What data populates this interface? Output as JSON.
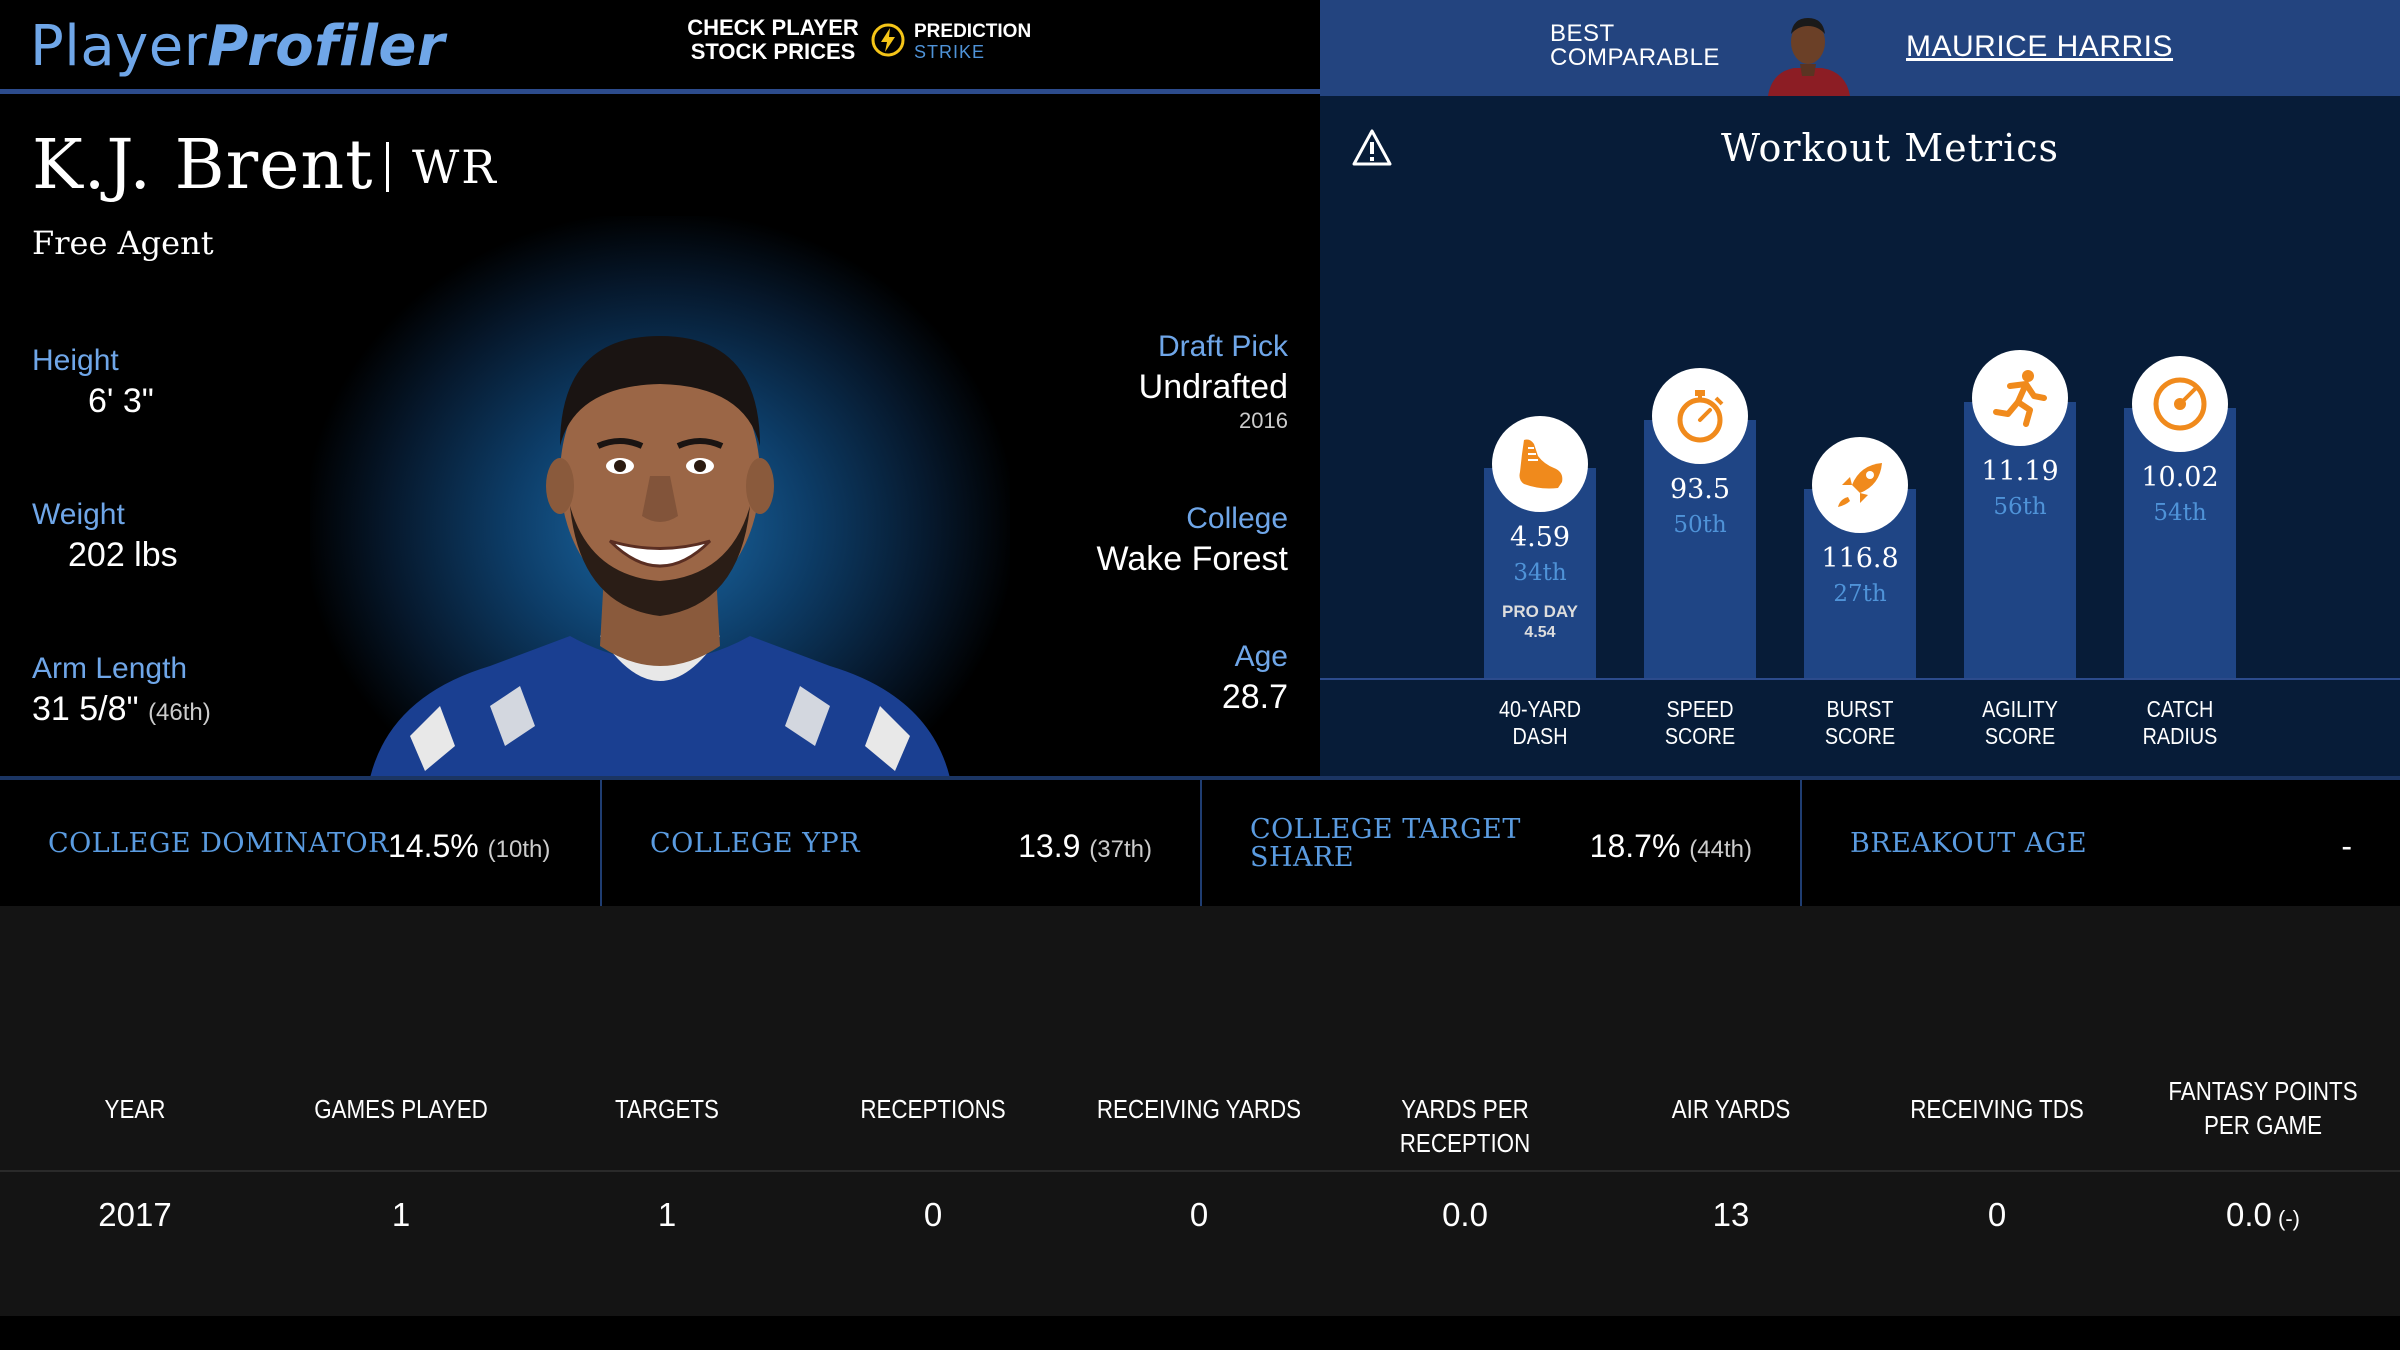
{
  "header": {
    "logo_part1": "Player",
    "logo_part2": "Profiler",
    "cta_text": "CHECK PLAYER STOCK PRICES",
    "cta_brand_line1": "PREDICTION",
    "cta_brand_line2": "STRIKE",
    "comparable_label": "BEST COMPARABLE",
    "comparable_name": "MAURICE HARRIS"
  },
  "player": {
    "name": "K.J. Brent",
    "position": "WR",
    "team": "Free Agent",
    "height_label": "Height",
    "height": "6' 3\"",
    "weight_label": "Weight",
    "weight": "202 lbs",
    "arm_label": "Arm Length",
    "arm_length": "31 5/8\"",
    "arm_rank": "(46th)",
    "draft_label": "Draft Pick",
    "draft_pick": "Undrafted",
    "draft_year": "2016",
    "college_label": "College",
    "college": "Wake Forest",
    "age_label": "Age",
    "age": "28.7"
  },
  "workout": {
    "title": "Workout Metrics",
    "colors": {
      "bar": "#1f4585",
      "icon": "#f08a1c",
      "percentile": "#4f93d8"
    },
    "metrics": [
      {
        "value": "4.59",
        "percentile": "34th",
        "extra_label": "PRO DAY",
        "extra_value": "4.54",
        "label_line1": "40-YARD",
        "label_line2": "DASH",
        "icon": "shoe-icon",
        "pct": 34
      },
      {
        "value": "93.5",
        "percentile": "50th",
        "label_line1": "SPEED",
        "label_line2": "SCORE",
        "icon": "stopwatch-icon",
        "pct": 50
      },
      {
        "value": "116.8",
        "percentile": "27th",
        "label_line1": "BURST",
        "label_line2": "SCORE",
        "icon": "rocket-icon",
        "pct": 27
      },
      {
        "value": "11.19",
        "percentile": "56th",
        "label_line1": "AGILITY",
        "label_line2": "SCORE",
        "icon": "runner-icon",
        "pct": 56
      },
      {
        "value": "10.02",
        "percentile": "54th",
        "label_line1": "CATCH",
        "label_line2": "RADIUS",
        "icon": "target-icon",
        "pct": 54
      }
    ]
  },
  "college_stats": [
    {
      "label": "COLLEGE DOMINATOR",
      "value": "14.5%",
      "rank": "(10th)"
    },
    {
      "label": "COLLEGE YPR",
      "value": "13.9",
      "rank": "(37th)"
    },
    {
      "label_line1": "COLLEGE TARGET",
      "label_line2": "SHARE",
      "value": "18.7%",
      "rank": "(44th)"
    },
    {
      "label": "BREAKOUT AGE",
      "value": "-"
    }
  ],
  "stats_table": {
    "headers": [
      "YEAR",
      "GAMES PLAYED",
      "TARGETS",
      "RECEPTIONS",
      "RECEIVING YARDS",
      "YARDS PER RECEPTION",
      "AIR YARDS",
      "RECEIVING TDS",
      "FANTASY POINTS PER GAME"
    ],
    "rows": [
      [
        "2017",
        "1",
        "1",
        "0",
        "0",
        "0.0",
        "13",
        "0",
        "0.0"
      ]
    ],
    "last_cell_suffix": "(-)"
  }
}
